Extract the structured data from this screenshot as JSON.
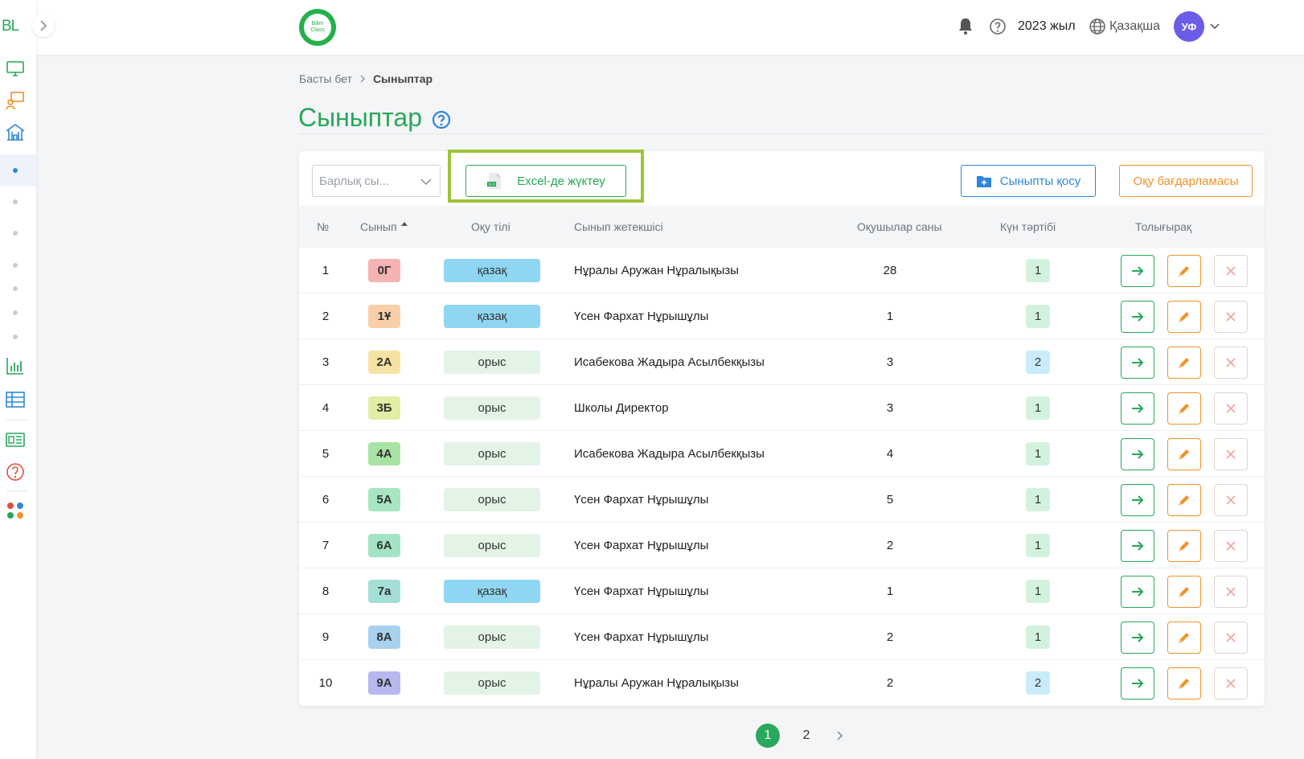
{
  "sidebar": {
    "logo": "BL",
    "nav_icons": [
      "monitor-icon",
      "teacher-board-icon",
      "school-building-icon",
      "bar-chart-icon",
      "table-icon",
      "news-icon",
      "help-circle-icon",
      "apps-grid-icon"
    ],
    "colors": {
      "accent": "#27a85a",
      "orange": "#f0932b",
      "blue": "#2e86de",
      "red": "#e74c3c"
    }
  },
  "topbar": {
    "brand_line1": "Bilim",
    "brand_line2": "Class",
    "year": "2023 жыл",
    "language": "Қазақша",
    "avatar_initials": "УФ"
  },
  "breadcrumb": {
    "home": "Басты бет",
    "current": "Сыныптар"
  },
  "page": {
    "title": "Сыныптар"
  },
  "toolbar": {
    "filter_placeholder": "Барлық сы...",
    "excel_label": "Excel-де жүктеу",
    "add_class_label": "Сыныпты қосу",
    "program_label": "Оқу бағдарламасы"
  },
  "table": {
    "headers": {
      "num": "№",
      "class": "Сынып",
      "language": "Оқу тілі",
      "teacher": "Сынып жетекшісі",
      "students": "Оқушылар саны",
      "schedule": "Күн тәртібі",
      "actions": "Толығырақ"
    },
    "rows": [
      {
        "num": "1",
        "class": "0Г",
        "class_color": "#f5b3b3",
        "language": "қазақ",
        "lang_color": "#8fd6f2",
        "teacher": "Нұралы Аружан Нұралықызы",
        "students": "28",
        "schedule": "1",
        "sched_color": "#d3f2dd"
      },
      {
        "num": "2",
        "class": "1Ұ",
        "class_color": "#f8cfa8",
        "language": "қазақ",
        "lang_color": "#8fd6f2",
        "teacher": "Үсен Фархат Нұрышұлы",
        "students": "1",
        "schedule": "1",
        "sched_color": "#d3f2dd"
      },
      {
        "num": "3",
        "class": "2А",
        "class_color": "#f6e3a3",
        "language": "орыс",
        "lang_color": "#e3f3e6",
        "teacher": "Исабекова Жадыра Асылбекқызы",
        "students": "3",
        "schedule": "2",
        "sched_color": "#c9ecfa"
      },
      {
        "num": "4",
        "class": "3Б",
        "class_color": "#e2eda6",
        "language": "орыс",
        "lang_color": "#e3f3e6",
        "teacher": "Школы Директор",
        "students": "3",
        "schedule": "1",
        "sched_color": "#d3f2dd"
      },
      {
        "num": "5",
        "class": "4А",
        "class_color": "#a9e3a3",
        "language": "орыс",
        "lang_color": "#e3f3e6",
        "teacher": "Исабекова Жадыра Асылбекқызы",
        "students": "4",
        "schedule": "1",
        "sched_color": "#d3f2dd"
      },
      {
        "num": "6",
        "class": "5А",
        "class_color": "#a7e6c1",
        "language": "орыс",
        "lang_color": "#e3f3e6",
        "teacher": "Үсен Фархат Нұрышұлы",
        "students": "5",
        "schedule": "1",
        "sched_color": "#d3f2dd"
      },
      {
        "num": "7",
        "class": "6А",
        "class_color": "#a3e3c6",
        "language": "орыс",
        "lang_color": "#e3f3e6",
        "teacher": "Үсен Фархат Нұрышұлы",
        "students": "2",
        "schedule": "1",
        "sched_color": "#d3f2dd"
      },
      {
        "num": "8",
        "class": "7а",
        "class_color": "#a3dfd6",
        "language": "қазақ",
        "lang_color": "#8fd6f2",
        "teacher": "Үсен Фархат Нұрышұлы",
        "students": "1",
        "schedule": "1",
        "sched_color": "#d3f2dd"
      },
      {
        "num": "9",
        "class": "8А",
        "class_color": "#a8d1ef",
        "language": "орыс",
        "lang_color": "#e3f3e6",
        "teacher": "Үсен Фархат Нұрышұлы",
        "students": "2",
        "schedule": "1",
        "sched_color": "#d3f2dd"
      },
      {
        "num": "10",
        "class": "9А",
        "class_color": "#b7b8ef",
        "language": "орыс",
        "lang_color": "#e3f3e6",
        "teacher": "Нұралы Аружан Нұралықызы",
        "students": "2",
        "schedule": "2",
        "sched_color": "#c9ecfa"
      }
    ]
  },
  "pagination": {
    "pages": [
      "1",
      "2"
    ],
    "current": "1"
  }
}
